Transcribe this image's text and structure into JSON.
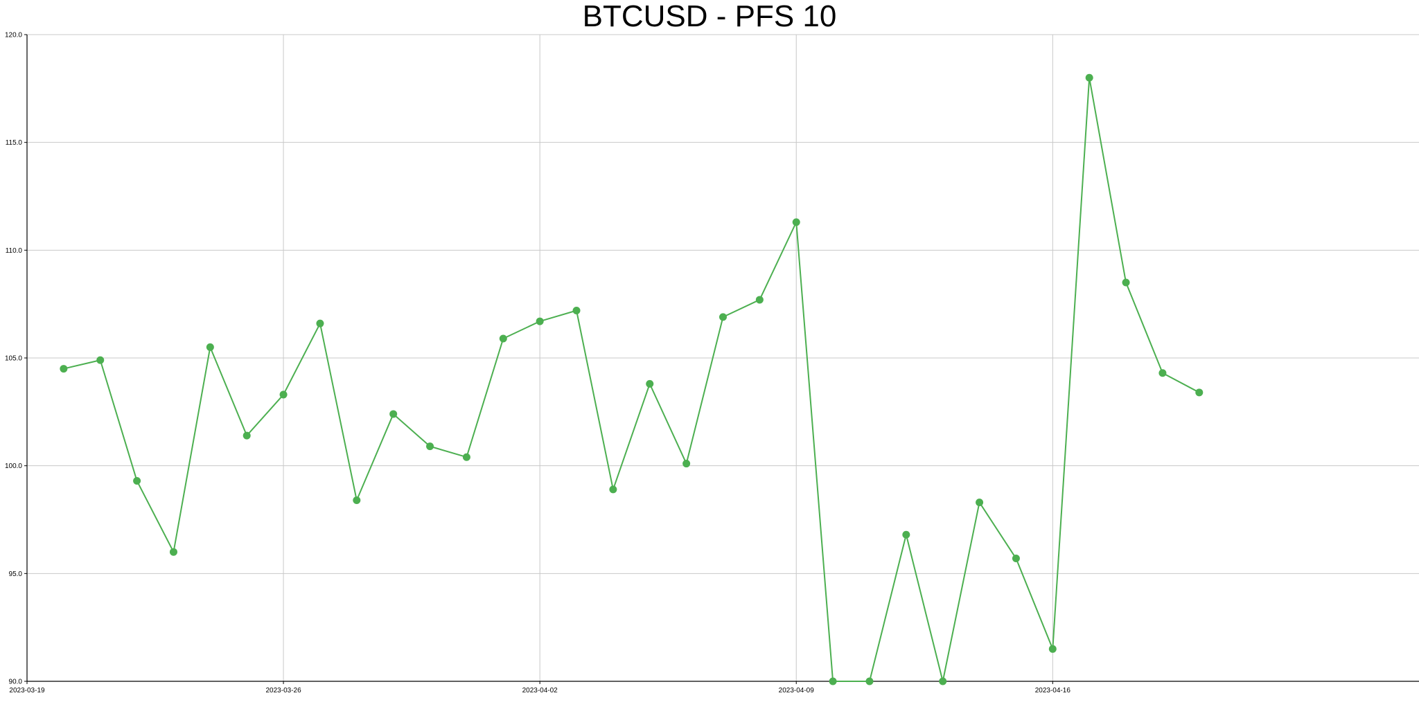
{
  "chart_data": {
    "type": "line",
    "title": "BTCUSD - PFS 10",
    "xlabel": "",
    "ylabel": "",
    "xlim": [
      "2023-03-19",
      "2023-04-26"
    ],
    "ylim": [
      90.0,
      120.0
    ],
    "grid": true,
    "x_ticks": [
      "2023-03-19",
      "2023-03-26",
      "2023-04-02",
      "2023-04-09",
      "2023-04-16"
    ],
    "y_ticks": [
      "90.0",
      "95.0",
      "100.0",
      "105.0",
      "110.0",
      "115.0",
      "120.0"
    ],
    "series": [
      {
        "color": "#4caf50",
        "x": [
          "2023-03-20",
          "2023-03-21",
          "2023-03-22",
          "2023-03-23",
          "2023-03-24",
          "2023-03-25",
          "2023-03-26",
          "2023-03-27",
          "2023-03-28",
          "2023-03-29",
          "2023-03-30",
          "2023-03-31",
          "2023-04-01",
          "2023-04-02",
          "2023-04-03",
          "2023-04-04",
          "2023-04-05",
          "2023-04-06",
          "2023-04-07",
          "2023-04-08",
          "2023-04-09",
          "2023-04-10",
          "2023-04-11",
          "2023-04-12",
          "2023-04-13",
          "2023-04-14",
          "2023-04-15",
          "2023-04-16",
          "2023-04-17",
          "2023-04-18",
          "2023-04-19",
          "2023-04-20"
        ],
        "values": [
          104.5,
          104.9,
          99.3,
          96.0,
          105.5,
          101.4,
          103.3,
          106.6,
          98.4,
          102.4,
          100.9,
          100.4,
          105.9,
          106.7,
          107.2,
          98.9,
          103.8,
          100.1,
          106.9,
          107.7,
          111.3,
          90.0,
          90.0,
          96.8,
          90.0,
          98.3,
          95.7,
          91.5,
          118.0,
          108.5,
          104.3,
          103.4
        ]
      }
    ]
  }
}
